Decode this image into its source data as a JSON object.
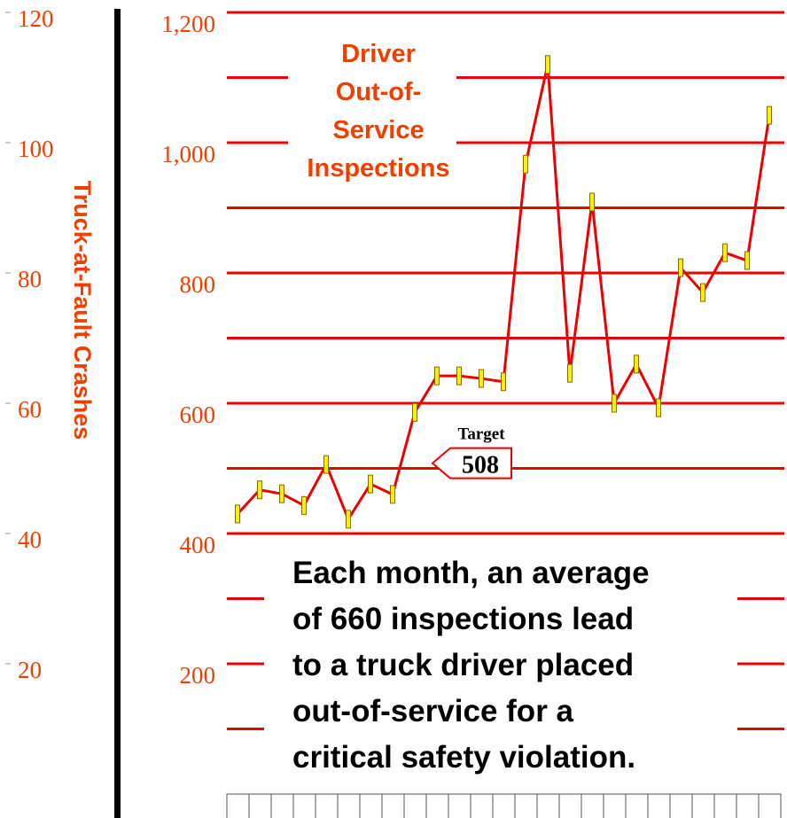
{
  "chart_data": {
    "type": "line",
    "title_lines": [
      "Driver",
      "Out-of-",
      "Service",
      "Inspections"
    ],
    "y2label": "Truck-at-Fault Crashes",
    "categories": [
      null,
      null,
      null,
      null,
      null,
      null,
      null,
      null,
      null,
      null,
      null,
      null,
      null,
      null,
      null,
      null,
      null,
      null,
      null,
      null,
      null,
      null,
      null,
      null,
      null
    ],
    "series": [
      {
        "name": "Driver Out-of-Service Inspections",
        "color": "#ee0000",
        "marker_color": "#ffee00",
        "values": [
          430,
          467,
          461,
          443,
          506,
          422,
          476,
          460,
          586,
          642,
          642,
          638,
          633,
          967,
          1120,
          646,
          909,
          600,
          660,
          593,
          808,
          770,
          831,
          819,
          1042
        ]
      }
    ],
    "ylim": [
      0,
      1200
    ],
    "yticks": [
      200,
      400,
      600,
      800,
      {
        "value": 1000,
        "label": "1,000"
      },
      {
        "value": 1200,
        "label": "1,200"
      }
    ],
    "yminorticks": [
      100,
      300,
      500,
      700,
      900,
      1100
    ],
    "y2lim": [
      0,
      120
    ],
    "y2ticks": [
      20,
      40,
      60,
      80,
      100,
      120
    ],
    "grid": true,
    "target": {
      "label": "Target",
      "value": 508
    },
    "annotation_lines": [
      "Each month, an average",
      "of 660 inspections lead",
      "to a truck driver placed",
      "out-of-service for a",
      "critical safety violation."
    ]
  }
}
